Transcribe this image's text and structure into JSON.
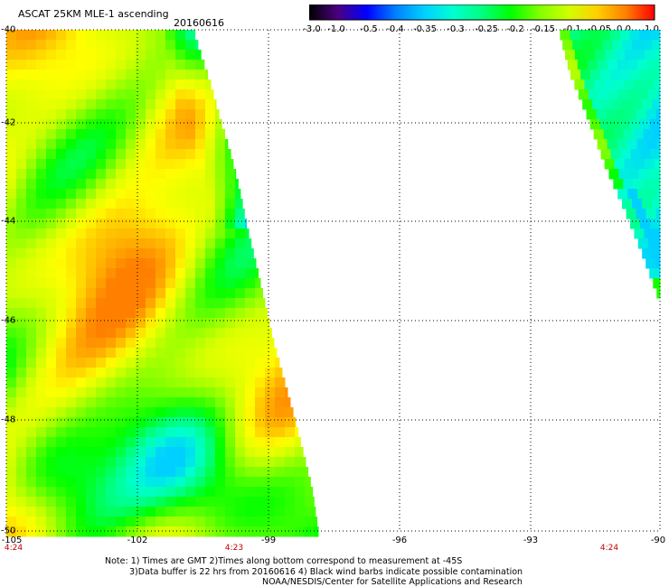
{
  "header": {
    "title": "ASCAT 25KM MLE-1 ascending",
    "date": "20160616"
  },
  "colorbar": {
    "labels": [
      "-3.0",
      "-1.0",
      "-0.5",
      "-0.4",
      "-0.35",
      "-0.3",
      "-0.25",
      "-0.2",
      "-0.15",
      "-0.1",
      "-0.05",
      "0.0",
      "1.0"
    ],
    "colors": [
      "#000000",
      "#4b0082",
      "#0000ff",
      "#0080ff",
      "#00d0ff",
      "#00ffd0",
      "#00ff80",
      "#00ff00",
      "#80ff00",
      "#d0ff00",
      "#ffd000",
      "#ff8000",
      "#ff0000"
    ]
  },
  "map": {
    "lat_labels": [
      "-40",
      "-42",
      "-44",
      "-46",
      "-48",
      "-50"
    ],
    "lon_labels": [
      "-105",
      "-102",
      "-99",
      "-96",
      "-93",
      "-90"
    ],
    "time_labels": [
      "4:24",
      "4:23",
      "4:24"
    ]
  },
  "notes": {
    "line1": "Note: 1) Times are GMT 2)Times along bottom correspond to measurement at -45S",
    "line2": "3)Data buffer is 22 hrs from 20160616 4) Black wind barbs indicate possible contamination",
    "line3": "NOAA/NESDIS/Center for Satellite Applications and Research"
  }
}
